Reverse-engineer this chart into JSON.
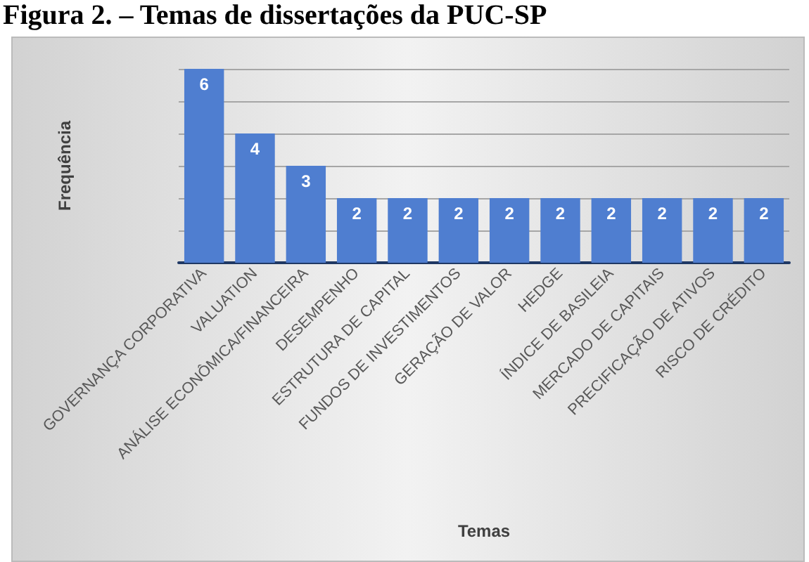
{
  "chart_data": {
    "type": "bar",
    "title": "Figura 2. – Temas de dissertações da PUC-SP",
    "xlabel": "Temas",
    "ylabel": "Frequência",
    "categories": [
      "GOVERNANÇA CORPORATIVA",
      "VALUATION",
      "ANÁLISE ECONÔMICA/FINANCEIRA",
      "DESEMPENHO",
      "ESTRUTURA DE CAPITAL",
      "FUNDOS DE INVESTIMENTOS",
      "GERAÇÃO DE VALOR",
      "HEDGE",
      "ÍNDICE DE BASILEIA",
      "MERCADO DE CAPITAIS",
      "PRECIFICAÇÃO DE ATIVOS",
      "RISCO DE CRÉDITO"
    ],
    "values": [
      6,
      4,
      3,
      2,
      2,
      2,
      2,
      2,
      2,
      2,
      2,
      2
    ],
    "color": "#4f7ed0",
    "ylim": [
      0,
      6
    ],
    "yticks": [
      {
        "value": 0,
        "label": null
      },
      {
        "value": 1,
        "label": null
      },
      {
        "value": 2,
        "label": null
      },
      {
        "value": 3,
        "label": null
      },
      {
        "value": 4,
        "label": null
      },
      {
        "value": 5,
        "label": null
      },
      {
        "value": 6,
        "label": null
      }
    ],
    "grid": "y",
    "tick_labels": "x",
    "data_labels": true
  }
}
